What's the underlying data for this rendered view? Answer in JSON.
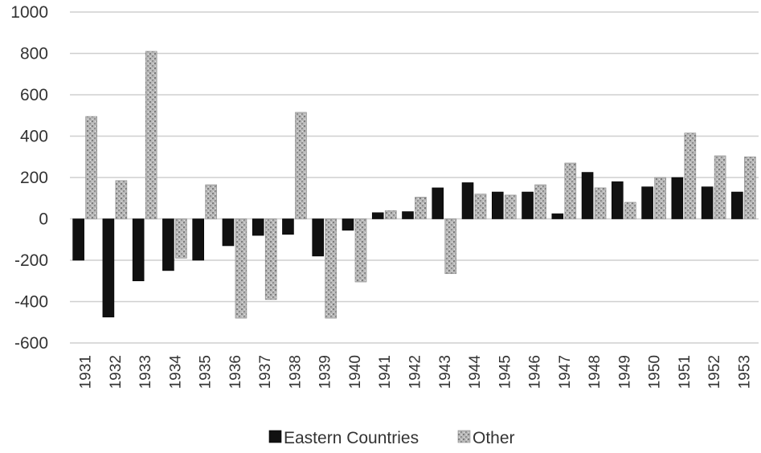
{
  "chart_data": {
    "type": "bar",
    "title": "",
    "xlabel": "",
    "ylabel": "",
    "ylim": [
      -600,
      1000
    ],
    "yticks": [
      1000,
      800,
      600,
      400,
      200,
      0,
      -200,
      -400,
      -600
    ],
    "grid": true,
    "legend_position": "bottom",
    "categories": [
      "1931",
      "1932",
      "1933",
      "1934",
      "1935",
      "1936",
      "1937",
      "1938",
      "1939",
      "1940",
      "1941",
      "1942",
      "1943",
      "1944",
      "1945",
      "1946",
      "1947",
      "1948",
      "1949",
      "1950",
      "1951",
      "1952",
      "1953"
    ],
    "series": [
      {
        "name": "Eastern Countries",
        "color": "#111111",
        "values": [
          -200,
          -475,
          -300,
          -250,
          -200,
          -130,
          -80,
          -75,
          -180,
          -55,
          30,
          35,
          150,
          175,
          130,
          130,
          25,
          225,
          180,
          155,
          200,
          155,
          130
        ]
      },
      {
        "name": "Other",
        "color": "#a8a8a8",
        "values": [
          495,
          185,
          810,
          -190,
          165,
          -480,
          -390,
          515,
          -480,
          -305,
          40,
          105,
          -265,
          120,
          115,
          165,
          270,
          150,
          80,
          200,
          415,
          305,
          300
        ]
      }
    ]
  }
}
